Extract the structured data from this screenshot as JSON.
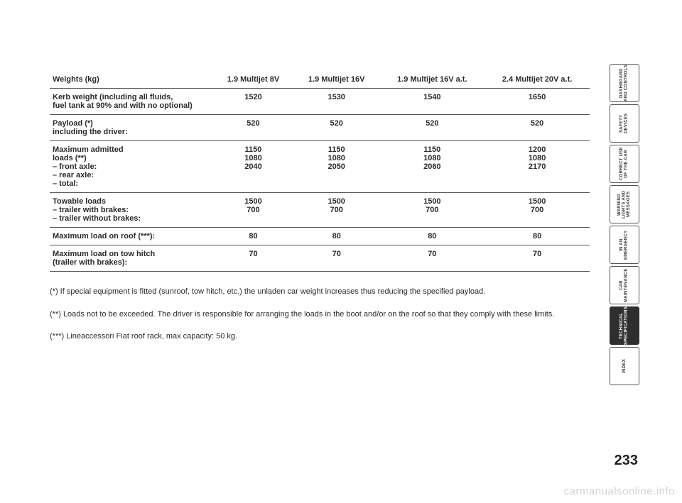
{
  "table": {
    "headers": [
      "Weights (kg)",
      "1.9 Multijet 8V",
      "1.9 Multijet 16V",
      "1.9 Multijet 16V a.t.",
      "2.4 Multijet 20V a.t."
    ],
    "rows": [
      {
        "label": "Kerb weight (including all fluids,\nfuel tank at 90% and with no optional)",
        "cells": [
          "1520",
          "1530",
          "1540",
          "1650"
        ]
      },
      {
        "label": "Payload (*)\nincluding the driver:",
        "cells": [
          "520",
          "520",
          "520",
          "520"
        ]
      },
      {
        "label": "Maximum admitted\nloads (**)\n– front axle:\n– rear axle:\n– total:",
        "cells": [
          "1150\n1080\n2040",
          "1150\n1080\n2050",
          "1150\n1080\n2060",
          "1200\n1080\n2170"
        ]
      },
      {
        "label": "Towable loads\n– trailer with brakes:\n– trailer without brakes:",
        "cells": [
          "1500\n700",
          "1500\n700",
          "1500\n700",
          "1500\n700"
        ]
      },
      {
        "label": "Maximum load on roof (***):",
        "cells": [
          "80",
          "80",
          "80",
          "80"
        ]
      },
      {
        "label": "Maximum load on tow hitch\n(trailer with brakes):",
        "cells": [
          "70",
          "70",
          "70",
          "70"
        ]
      }
    ]
  },
  "notes": [
    "(*) If special equipment is fitted (sunroof, tow hitch, etc.) the unladen car weight increases thus reducing the specified payload.",
    "(**) Loads not to be exceeded. The driver is responsible for arranging the loads in the boot and/or on the roof so that they comply with these limits.",
    "(***) Lineaccessori Fiat roof rack, max capacity: 50 kg."
  ],
  "tabs": [
    {
      "label": "DASHBOARD AND CONTROLS",
      "active": false
    },
    {
      "label": "SAFETY DEVICES",
      "active": false
    },
    {
      "label": "CORRECT USE OF THE CAR",
      "active": false
    },
    {
      "label": "WARNING LIGHTS AND MESSAGES",
      "active": false
    },
    {
      "label": "IN AN EMERGENCY",
      "active": false
    },
    {
      "label": "CAR MAINTENANCE",
      "active": false
    },
    {
      "label": "TECHNICAL SPECIFICATIONS",
      "active": true
    },
    {
      "label": "INDEX",
      "active": false
    }
  ],
  "pageNumber": "233",
  "watermark": "carmanualsonline.info"
}
